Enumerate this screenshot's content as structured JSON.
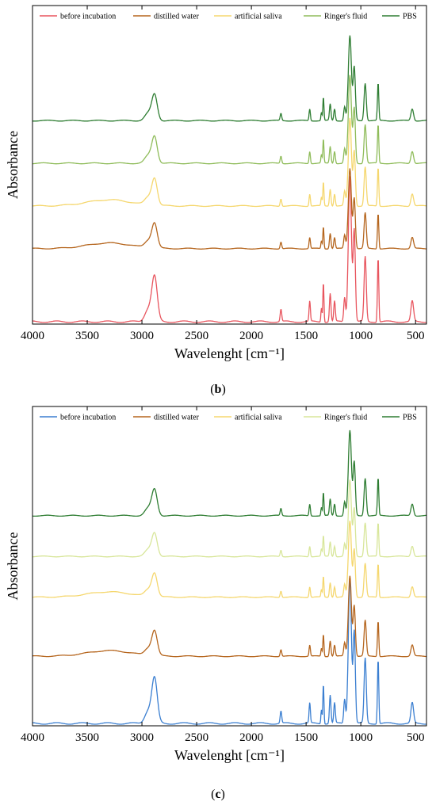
{
  "panels": [
    {
      "caption_letter": "b",
      "chart_data": {
        "type": "line",
        "xlabel": "Wavelenght [cm⁻¹]",
        "ylabel": "Absorbance",
        "xlim": [
          4000,
          400
        ],
        "x_reversed": true,
        "xticks": [
          4000,
          3500,
          3000,
          2500,
          2000,
          1500,
          1000,
          500
        ],
        "yticks": [],
        "grid": false,
        "legend_position": "top",
        "series": [
          {
            "name": "before incubation",
            "color": "#e8555e",
            "baseline": 0.0,
            "scale": 1.0
          },
          {
            "name": "distilled water",
            "color": "#b5651d",
            "baseline": 0.36,
            "scale": 0.55
          },
          {
            "name": "artificial saliva",
            "color": "#f5d76e",
            "baseline": 0.57,
            "scale": 0.6
          },
          {
            "name": "Ringer's fluid",
            "color": "#8fbc5a",
            "baseline": 0.78,
            "scale": 0.6
          },
          {
            "name": "PBS",
            "color": "#2e7d32",
            "baseline": 0.99,
            "scale": 0.58
          }
        ]
      }
    },
    {
      "caption_letter": "c",
      "chart_data": {
        "type": "line",
        "xlabel": "Wavelenght [cm⁻¹]",
        "ylabel": "Absorbance",
        "xlim": [
          4000,
          400
        ],
        "x_reversed": true,
        "xticks": [
          4000,
          3500,
          3000,
          2500,
          2000,
          1500,
          1000,
          500
        ],
        "yticks": [],
        "grid": false,
        "legend_position": "top",
        "series": [
          {
            "name": "before incubation",
            "color": "#3b7fd1",
            "baseline": 0.0,
            "scale": 1.0
          },
          {
            "name": "distilled water",
            "color": "#b5651d",
            "baseline": 0.33,
            "scale": 0.55
          },
          {
            "name": "artificial saliva",
            "color": "#f5d76e",
            "baseline": 0.62,
            "scale": 0.52
          },
          {
            "name": "Ringer's fluid",
            "color": "#d8e69a",
            "baseline": 0.82,
            "scale": 0.52
          },
          {
            "name": "PBS",
            "color": "#2e7d32",
            "baseline": 1.02,
            "scale": 0.58
          }
        ]
      }
    }
  ],
  "spectrum_peaks": [
    {
      "x": 2885,
      "h": 0.22,
      "w": 25
    },
    {
      "x": 2945,
      "h": 0.06,
      "w": 30
    },
    {
      "x": 1730,
      "h": 0.06,
      "w": 7
    },
    {
      "x": 1467,
      "h": 0.1,
      "w": 6
    },
    {
      "x": 1360,
      "h": 0.07,
      "w": 5
    },
    {
      "x": 1342,
      "h": 0.2,
      "w": 5
    },
    {
      "x": 1280,
      "h": 0.14,
      "w": 7
    },
    {
      "x": 1240,
      "h": 0.1,
      "w": 7
    },
    {
      "x": 1148,
      "h": 0.12,
      "w": 8
    },
    {
      "x": 1100,
      "h": 0.72,
      "w": 14
    },
    {
      "x": 1060,
      "h": 0.45,
      "w": 10
    },
    {
      "x": 960,
      "h": 0.32,
      "w": 10
    },
    {
      "x": 842,
      "h": 0.32,
      "w": 6
    },
    {
      "x": 530,
      "h": 0.1,
      "w": 12
    }
  ]
}
